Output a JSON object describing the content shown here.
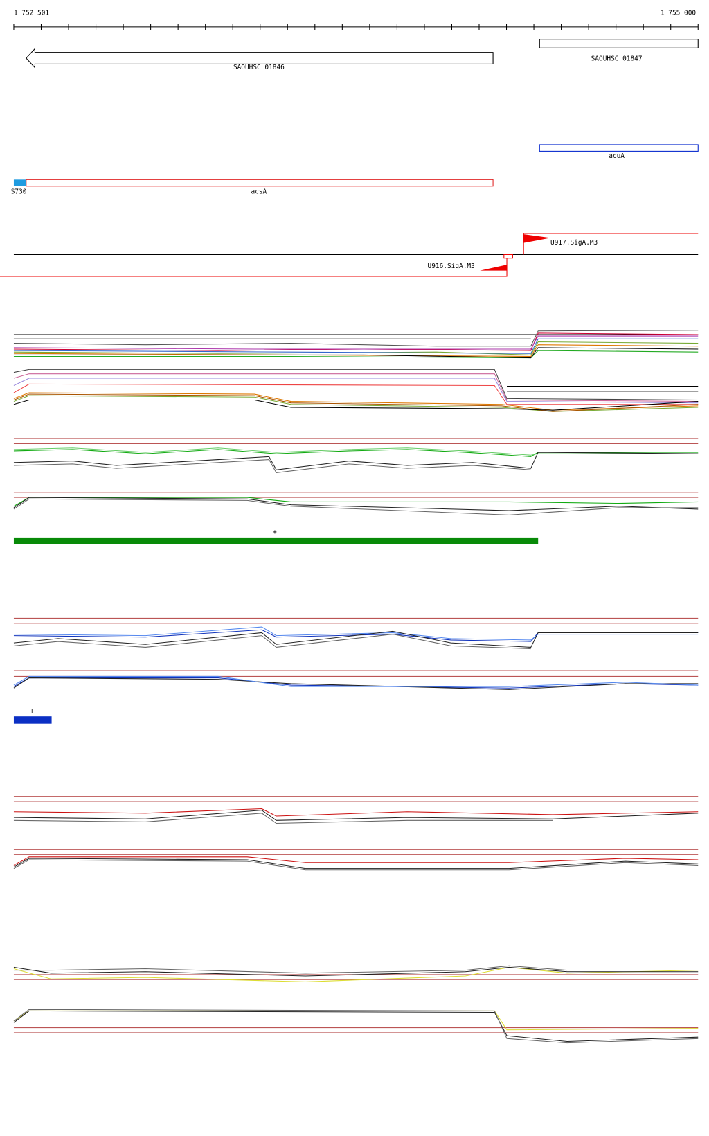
{
  "ruler": {
    "start": "1 752 501",
    "end": "1 755 000"
  },
  "features": [
    {
      "label": "SAOUHSC_01846"
    },
    {
      "label": "SAOUHSC_01847"
    },
    {
      "label": "acuA"
    },
    {
      "label": "S730"
    },
    {
      "label": "acsA"
    },
    {
      "label": "U917.SigA.M3"
    },
    {
      "label": "U916.SigA.M3"
    }
  ],
  "markers": [
    "+",
    "+"
  ]
}
